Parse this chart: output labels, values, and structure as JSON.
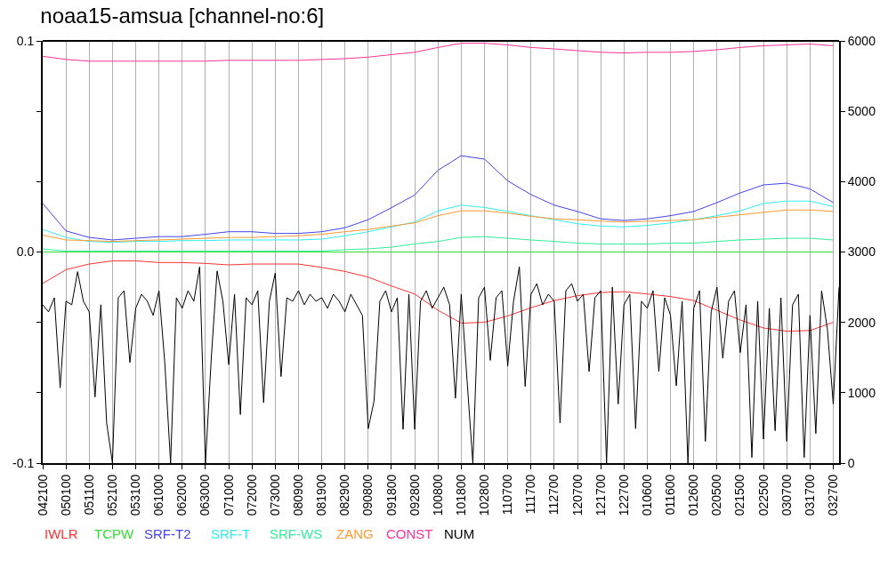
{
  "chart_data": {
    "type": "line",
    "title": "noaa15-amsua [channel-no:6]",
    "categories": [
      "042100",
      null,
      null,
      null,
      "050100",
      null,
      null,
      null,
      "051100",
      null,
      null,
      null,
      "052100",
      null,
      null,
      null,
      "053100",
      null,
      null,
      null,
      "061000",
      null,
      null,
      null,
      "062000",
      null,
      null,
      null,
      "063000",
      null,
      null,
      null,
      "071000",
      null,
      null,
      null,
      "072000",
      null,
      null,
      null,
      "073000",
      null,
      null,
      null,
      "080900",
      null,
      null,
      null,
      "081900",
      null,
      null,
      null,
      "082900",
      null,
      null,
      null,
      "090800",
      null,
      null,
      null,
      "091800",
      null,
      null,
      null,
      "092800",
      null,
      null,
      null,
      "100800",
      null,
      null,
      null,
      "101800",
      null,
      null,
      null,
      "102800",
      null,
      null,
      null,
      "110700",
      null,
      null,
      null,
      "111700",
      null,
      null,
      null,
      "112700",
      null,
      null,
      null,
      "120700",
      null,
      null,
      null,
      "121700",
      null,
      null,
      null,
      "122700",
      null,
      null,
      null,
      "010600",
      null,
      null,
      null,
      "011600",
      null,
      null,
      null,
      "012600",
      null,
      null,
      null,
      "020500",
      null,
      null,
      null,
      "021500",
      null,
      null,
      null,
      "022500",
      null,
      null,
      null,
      "030700",
      null,
      null,
      null,
      "031700",
      null,
      null,
      null,
      "032700",
      null
    ],
    "series": [
      {
        "name": "IWLR",
        "color": "#ff3333",
        "x": [
          "042100",
          "050100",
          "051100",
          "052100",
          "053100",
          "061000",
          "062000",
          "063000",
          "071000",
          "072000",
          "073000",
          "080900",
          "081900",
          "082900",
          "090800",
          "091800",
          "092800",
          "100800",
          "101800",
          "102800",
          "110700",
          "111700",
          "112700",
          "120700",
          "121700",
          "122700",
          "010600",
          "011600",
          "012600",
          "020500",
          "021500",
          "022500",
          "030700",
          "031700",
          "032700"
        ],
        "values": [
          -0.0149,
          -0.0084,
          -0.0057,
          -0.0042,
          -0.0042,
          -0.005,
          -0.005,
          -0.0054,
          -0.0061,
          -0.0057,
          -0.0057,
          -0.0057,
          -0.0073,
          -0.0092,
          -0.0119,
          -0.0161,
          -0.0199,
          -0.0276,
          -0.0337,
          -0.0333,
          -0.0303,
          -0.0264,
          -0.023,
          -0.0207,
          -0.0192,
          -0.0188,
          -0.0199,
          -0.0211,
          -0.023,
          -0.0276,
          -0.0322,
          -0.036,
          -0.0375,
          -0.0372,
          -0.0333
        ]
      },
      {
        "name": "TCPW",
        "color": "#33dd33",
        "x": [
          "042100",
          "050100",
          "051100",
          "052100",
          "053100",
          "061000",
          "062000",
          "063000",
          "071000",
          "072000",
          "073000",
          "080900",
          "081900",
          "082900",
          "090800",
          "091800",
          "092800",
          "100800",
          "101800",
          "102800",
          "110700",
          "111700",
          "112700",
          "120700",
          "121700",
          "122700",
          "010600",
          "011600",
          "012600",
          "020500",
          "021500",
          "022500",
          "030700",
          "031700",
          "032700"
        ],
        "values": [
          0,
          0,
          0,
          0,
          0,
          0,
          0,
          0,
          0,
          0,
          0,
          0,
          0,
          0,
          0,
          0,
          0,
          0,
          0,
          0,
          0,
          0,
          0,
          0,
          0,
          0,
          0,
          0,
          0,
          0,
          0,
          0,
          0,
          0,
          0
        ]
      },
      {
        "name": "SRF-T2",
        "color": "#4444ee",
        "x": [
          "042100",
          "050100",
          "051100",
          "052100",
          "053100",
          "061000",
          "062000",
          "063000",
          "071000",
          "072000",
          "073000",
          "080900",
          "081900",
          "082900",
          "090800",
          "091800",
          "092800",
          "100800",
          "101800",
          "102800",
          "110700",
          "111700",
          "112700",
          "120700",
          "121700",
          "122700",
          "010600",
          "011600",
          "012600",
          "020500",
          "021500",
          "022500",
          "030700",
          "031700",
          "032700"
        ],
        "values": [
          0.023,
          0.01,
          0.0069,
          0.0057,
          0.0065,
          0.0073,
          0.0073,
          0.0084,
          0.0096,
          0.0096,
          0.0088,
          0.0088,
          0.0096,
          0.0115,
          0.0153,
          0.021,
          0.027,
          0.0387,
          0.0456,
          0.044,
          0.0337,
          0.0272,
          0.0222,
          0.0192,
          0.0157,
          0.0149,
          0.0157,
          0.0172,
          0.0192,
          0.0234,
          0.028,
          0.0318,
          0.0326,
          0.0299,
          0.0234
        ]
      },
      {
        "name": "SRF-T",
        "color": "#33eeee",
        "x": [
          "042100",
          "050100",
          "051100",
          "052100",
          "053100",
          "061000",
          "062000",
          "063000",
          "071000",
          "072000",
          "073000",
          "080900",
          "081900",
          "082900",
          "090800",
          "091800",
          "092800",
          "100800",
          "101800",
          "102800",
          "110700",
          "111700",
          "112700",
          "120700",
          "121700",
          "122700",
          "010600",
          "011600",
          "012600",
          "020500",
          "021500",
          "022500",
          "030700",
          "031700",
          "032700"
        ],
        "values": [
          0.0107,
          0.0069,
          0.005,
          0.0046,
          0.005,
          0.005,
          0.0054,
          0.0054,
          0.0057,
          0.0057,
          0.0057,
          0.0057,
          0.0061,
          0.0077,
          0.0096,
          0.0119,
          0.0142,
          0.0195,
          0.0222,
          0.0211,
          0.0192,
          0.0172,
          0.0153,
          0.0134,
          0.0123,
          0.0119,
          0.0126,
          0.0138,
          0.0153,
          0.0172,
          0.0195,
          0.023,
          0.0241,
          0.0241,
          0.0215
        ]
      },
      {
        "name": "SRF-WS",
        "color": "#33ee99",
        "x": [
          "042100",
          "050100",
          "051100",
          "052100",
          "053100",
          "061000",
          "062000",
          "063000",
          "071000",
          "072000",
          "073000",
          "080900",
          "081900",
          "082900",
          "090800",
          "091800",
          "092800",
          "100800",
          "101800",
          "102800",
          "110700",
          "111700",
          "112700",
          "120700",
          "121700",
          "122700",
          "010600",
          "011600",
          "012600",
          "020500",
          "021500",
          "022500",
          "030700",
          "031700",
          "032700"
        ],
        "values": [
          0.0015,
          0.0004,
          0.0004,
          0.0004,
          0.0004,
          0.0004,
          0.0004,
          0.0004,
          0.0004,
          0.0004,
          0.0004,
          0.0004,
          0.0004,
          0.0011,
          0.0015,
          0.0023,
          0.0038,
          0.005,
          0.0069,
          0.0073,
          0.0065,
          0.0057,
          0.005,
          0.0042,
          0.0038,
          0.0038,
          0.0038,
          0.0042,
          0.0042,
          0.005,
          0.0057,
          0.0061,
          0.0065,
          0.0065,
          0.0057
        ]
      },
      {
        "name": "ZANG",
        "color": "#ff9933",
        "x": [
          "042100",
          "050100",
          "051100",
          "052100",
          "053100",
          "061000",
          "062000",
          "063000",
          "071000",
          "072000",
          "073000",
          "080900",
          "081900",
          "082900",
          "090800",
          "091800",
          "092800",
          "100800",
          "101800",
          "102800",
          "110700",
          "111700",
          "112700",
          "120700",
          "121700",
          "122700",
          "010600",
          "011600",
          "012600",
          "020500",
          "021500",
          "022500",
          "030700",
          "031700",
          "032700"
        ],
        "values": [
          0.008,
          0.0057,
          0.0054,
          0.005,
          0.0054,
          0.0057,
          0.0061,
          0.0065,
          0.0069,
          0.0069,
          0.0073,
          0.0077,
          0.0084,
          0.0096,
          0.0107,
          0.0123,
          0.0138,
          0.0172,
          0.0195,
          0.0195,
          0.0184,
          0.0169,
          0.0157,
          0.0153,
          0.0146,
          0.0142,
          0.0146,
          0.0149,
          0.0153,
          0.0165,
          0.0176,
          0.0188,
          0.0199,
          0.0199,
          0.0192
        ]
      },
      {
        "name": "CONST",
        "color": "#ff3399",
        "x": [
          "042100",
          "050100",
          "051100",
          "052100",
          "053100",
          "061000",
          "062000",
          "063000",
          "071000",
          "072000",
          "073000",
          "080900",
          "081900",
          "082900",
          "090800",
          "091800",
          "092800",
          "100800",
          "101800",
          "102800",
          "110700",
          "111700",
          "112700",
          "120700",
          "121700",
          "122700",
          "010600",
          "011600",
          "012600",
          "020500",
          "021500",
          "022500",
          "030700",
          "031700",
          "032700"
        ],
        "values": [
          0.0927,
          0.0912,
          0.0904,
          0.0904,
          0.0904,
          0.0904,
          0.0904,
          0.0904,
          0.0908,
          0.0908,
          0.0908,
          0.0908,
          0.0912,
          0.0916,
          0.0923,
          0.0935,
          0.0946,
          0.0969,
          0.0989,
          0.0989,
          0.0981,
          0.0969,
          0.0962,
          0.0954,
          0.0946,
          0.0943,
          0.0946,
          0.0946,
          0.095,
          0.0958,
          0.0969,
          0.0977,
          0.0981,
          0.0985,
          0.0977
        ]
      },
      {
        "name": "NUM",
        "color": "#000000",
        "axis": "y2",
        "values": [
          2250,
          2150,
          2350,
          1070,
          2300,
          2250,
          2720,
          2300,
          2150,
          940,
          2250,
          570,
          0,
          2350,
          2450,
          1430,
          2200,
          2400,
          2300,
          2100,
          2450,
          1430,
          0,
          2350,
          2200,
          2450,
          2300,
          2790,
          0,
          1490,
          2730,
          2300,
          1400,
          2400,
          690,
          2350,
          2250,
          2450,
          860,
          2300,
          2700,
          1230,
          2350,
          2300,
          2450,
          2250,
          2400,
          2300,
          2350,
          2200,
          2400,
          2300,
          2150,
          2400,
          2250,
          2100,
          490,
          880,
          2300,
          2450,
          2150,
          2350,
          480,
          2400,
          480,
          2300,
          2450,
          2200,
          2350,
          2500,
          2250,
          920,
          2400,
          1180,
          0,
          2350,
          2500,
          1460,
          2350,
          2450,
          1380,
          2300,
          2790,
          1090,
          2400,
          2550,
          2250,
          2400,
          2300,
          570,
          2450,
          2550,
          2300,
          2400,
          1300,
          2350,
          2450,
          0,
          2500,
          840,
          2250,
          2400,
          490,
          2300,
          2200,
          2450,
          1300,
          2350,
          2100,
          1100,
          2300,
          0,
          2200,
          2450,
          310,
          2150,
          2500,
          1490,
          2300,
          2450,
          1570,
          2250,
          80,
          2300,
          340,
          2200,
          460,
          2350,
          310,
          2250,
          2400,
          80,
          2100,
          420,
          2450,
          1900,
          840,
          2500
        ]
      }
    ],
    "ylim": [
      -0.1,
      0.1
    ],
    "yticks": [
      -0.1,
      {
        "value": -0.0667,
        "label": null
      },
      {
        "value": -0.0333,
        "label": null
      },
      {
        "value": 0,
        "label": "0.0"
      },
      {
        "value": 0.0333,
        "label": null
      },
      {
        "value": 0.0667,
        "label": null
      },
      0.1
    ],
    "y2lim": [
      0,
      6000
    ],
    "y2ticks": [
      0,
      1000,
      2000,
      3000,
      4000,
      5000,
      6000
    ],
    "grid": "x",
    "legend": "bottom"
  }
}
